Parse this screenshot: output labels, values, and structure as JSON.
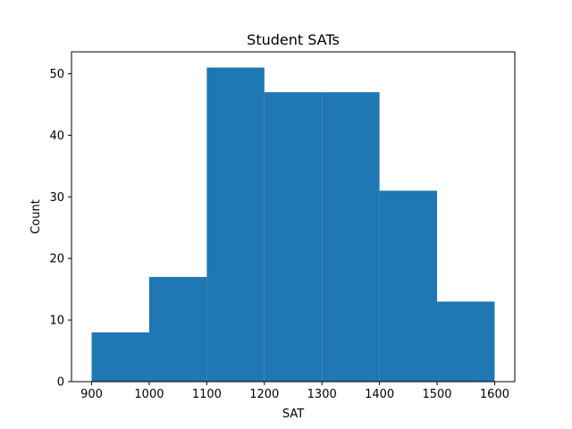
{
  "chart_data": {
    "type": "bar",
    "title": "Student SATs",
    "xlabel": "SAT",
    "ylabel": "Count",
    "bins": [
      {
        "start": 900,
        "end": 1000,
        "count": 8
      },
      {
        "start": 1000,
        "end": 1100,
        "count": 17
      },
      {
        "start": 1100,
        "end": 1200,
        "count": 51
      },
      {
        "start": 1200,
        "end": 1300,
        "count": 47
      },
      {
        "start": 1300,
        "end": 1400,
        "count": 47
      },
      {
        "start": 1400,
        "end": 1500,
        "count": 31
      },
      {
        "start": 1500,
        "end": 1600,
        "count": 13
      }
    ],
    "xlim": [
      865,
      1635
    ],
    "ylim": [
      0,
      53.55
    ],
    "xticks": [
      900,
      1000,
      1100,
      1200,
      1300,
      1400,
      1500,
      1600
    ],
    "yticks": [
      0,
      10,
      20,
      30,
      40,
      50
    ],
    "bar_color": "#1f77b4",
    "grid": false
  }
}
